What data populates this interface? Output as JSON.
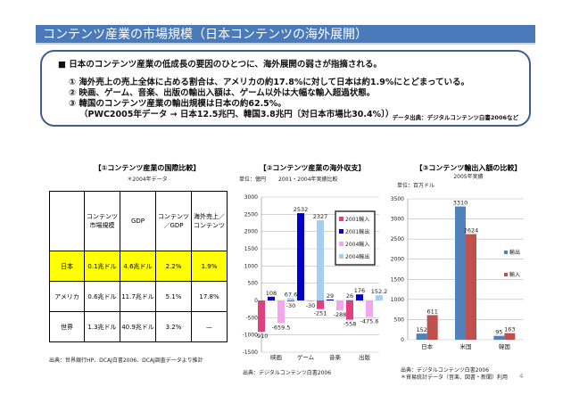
{
  "title": "コンテンツ産業の市場規模（日本コンテンツの海外展開）",
  "summary": {
    "lead": "■ 日本のコンテンツ産業の低成長の要因のひとつに、海外展開の弱さが指摘される。",
    "points": [
      "① 海外売上の売上全体に占める割合は、アメリカの約17.8%に対して日本は約1.9%にとどまっている。",
      "② 映画、ゲーム、音楽、出版の輸出入額は、ゲーム以外は大幅な輸入超過状態。",
      "③ 韓国のコンテンツ産業の輸出規模は日本の約62.5%。",
      "（PWC2005年データ → 日本12.5兆円、韓国3.8兆円〔対日本市場比30.4%〕）"
    ],
    "source": "データ出典：デジタルコンテンツ白書2006など"
  },
  "table": {
    "title": "【①コンテンツ産業の国際比較】",
    "note": "＊2004年データ",
    "headers": [
      "",
      "コンテンツ市場規模",
      "GDP",
      "コンテンツ／GDP",
      "海外売上／コンテンツ"
    ],
    "rows": [
      [
        "日本",
        "0.1兆ドル",
        "4.6兆ドル",
        "2.2%",
        "1.9%"
      ],
      [
        "アメリカ",
        "0.6兆ドル",
        "11.7兆ドル",
        "5.1%",
        "17.8%"
      ],
      [
        "世界",
        "1.3兆ドル",
        "40.9兆ドル",
        "3.2%",
        "—"
      ]
    ],
    "source": "出典：世界銀行HP、DCAJ白書2006、DCAJ調査データより推計"
  },
  "chart_data": [
    {
      "type": "bar",
      "title": "【②コンテンツ産業の海外収支】",
      "unit": "単位：億円",
      "subtitle": "2001・2004年実績比較",
      "categories": [
        "映画",
        "ゲーム",
        "音楽",
        "出版"
      ],
      "ylim": [
        -1500,
        3000
      ],
      "yticks": [
        3000,
        2500,
        2000,
        1500,
        1000,
        500,
        0,
        -500,
        -1000,
        -1500
      ],
      "series": [
        {
          "name": "2001輸入",
          "color": "#e0407f",
          "values": [
            -910,
            -30,
            -251,
            -558
          ]
        },
        {
          "name": "2001輸出",
          "color": "#0000c8",
          "values": [
            108,
            2532,
            29,
            176
          ]
        },
        {
          "name": "2004輸入",
          "color": "#f2a6ec",
          "values": [
            -659.5,
            -30,
            -288,
            -475.6
          ]
        },
        {
          "name": "2004輸出",
          "color": "#a6cdf2",
          "values": [
            67.6,
            2327,
            26,
            152.2
          ]
        }
      ],
      "legend": "top-right",
      "source": "出典：デジタルコンテンツ白書2006"
    },
    {
      "type": "bar",
      "title": "【③コンテンツ輸出入額の比較】",
      "unit": "単位：百万ドル",
      "subtitle": "2005年実績",
      "categories": [
        "日本",
        "米国",
        "韓国"
      ],
      "ylim": [
        0,
        3500
      ],
      "yticks": [
        3500,
        3000,
        2500,
        2000,
        1500,
        1000,
        500,
        0
      ],
      "series": [
        {
          "name": "輸出",
          "color": "#4f81bd",
          "values": [
            152,
            3310,
            95
          ]
        },
        {
          "name": "輸入",
          "color": "#c0504d",
          "values": [
            611,
            2624,
            163
          ]
        }
      ],
      "legend": "right",
      "source": "出典：デジタルコンテンツ白書2006",
      "note": "＊貿易統計データ（音楽、図書・新聞）利用"
    }
  ],
  "page_number": "4"
}
